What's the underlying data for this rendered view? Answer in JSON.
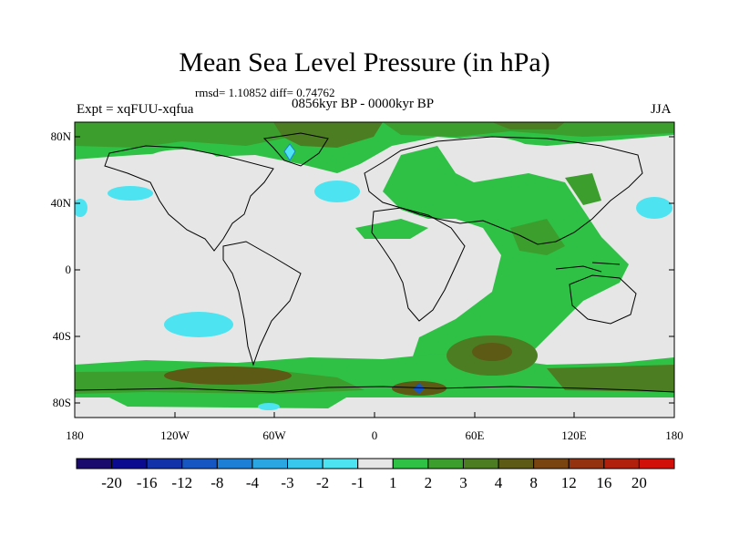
{
  "header": {
    "title": "Mean Sea Level Pressure (in hPa)",
    "stats": "rmsd= 1.10852 diff= 0.74762",
    "period": "0856kyr BP - 0000kyr BP",
    "experiment": "Expt = xqFUU-xqfua",
    "season": "JJA"
  },
  "axes": {
    "y_ticks": [
      "80N",
      "40N",
      "0",
      "40S",
      "80S"
    ],
    "x_ticks": [
      "180",
      "120W",
      "60W",
      "0",
      "60E",
      "120E",
      "180"
    ]
  },
  "colorbar": {
    "labels": [
      "-20",
      "-16",
      "-12",
      "-8",
      "-4",
      "-3",
      "-2",
      "-1",
      "1",
      "2",
      "3",
      "4",
      "8",
      "12",
      "16",
      "20"
    ],
    "colors": [
      "#1a0a6e",
      "#0b0b8f",
      "#1132a8",
      "#1656c2",
      "#1d7fd6",
      "#2aa7e3",
      "#38c8ee",
      "#4ee3f0",
      "#e6e6e6",
      "#2fc046",
      "#3c9e2c",
      "#4c7d22",
      "#5c5a14",
      "#7a4410",
      "#943210",
      "#b0200c",
      "#d2100a"
    ]
  },
  "legend_colors": {
    "neutral": "#e6e6e6",
    "green": "#2fc046",
    "dark_green": "#3c9e2c",
    "olive": "#4c7d22",
    "brown": "#5c5a14",
    "cyan": "#4ee3f0"
  }
}
